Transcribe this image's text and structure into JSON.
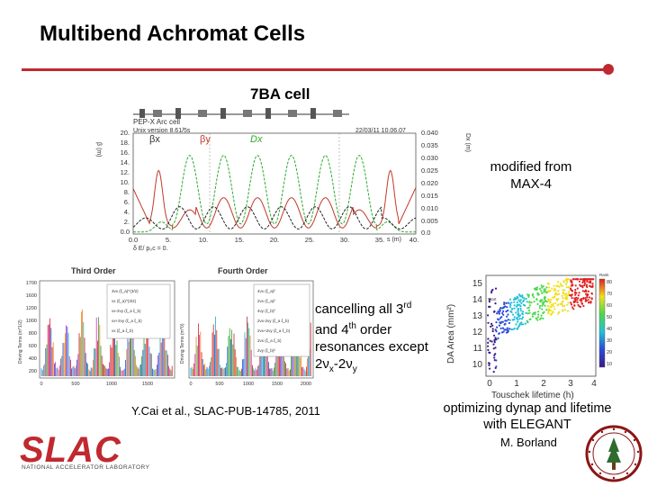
{
  "slide": {
    "title": "Multibend Achromat Cells",
    "cell_label": "7BA cell",
    "modified_line1": "modified from",
    "modified_line2": "MAX-4",
    "cancel_line1": "cancelling all 3",
    "cancel_sup1": "rd",
    "cancel_line2": "and 4",
    "cancel_sup2": "th",
    "cancel_line2_rest": " order",
    "cancel_line3": "resonances except",
    "cancel_line4_a": "2",
    "cancel_nu1": "ν",
    "cancel_sub1": "x",
    "cancel_line4_b": "-2",
    "cancel_nu2": "ν",
    "cancel_sub2": "y",
    "reference": "Y.Cai et al., SLAC-PUB-14785, 2011",
    "optim_line1": "optimizing dynap and lifetime",
    "optim_line2": "with ELEGANT",
    "author": "M. Borland",
    "logo_text": "SLAC",
    "logo_sub": "NATIONAL ACCELERATOR LABORATORY"
  },
  "lattice_plot": {
    "header_left": "PEP-X Arc cell",
    "header_version": "Unix version 8.61/5s",
    "header_date": "22/03/11  10.06.07",
    "label_betax": "βx",
    "label_betay": "βy",
    "label_dx": "Dx",
    "left_axis_unit": "β (m)",
    "right_axis_unit": "Dx (m)",
    "bottom_axis_unit": "s (m)",
    "bottom_note": "δ E/ p₀c = 0.",
    "left_ticks": [
      "20.",
      "18.",
      "16.",
      "14.",
      "12.",
      "10.",
      "8.",
      "6.",
      "4.",
      "2.",
      "0.0"
    ],
    "right_ticks": [
      "0.040",
      "0.035",
      "0.030",
      "0.025",
      "0.020",
      "0.015",
      "0.010",
      "0.005",
      "0.0"
    ],
    "bottom_ticks": [
      "0.0",
      "5.",
      "10.",
      "15.",
      "20.",
      "25.",
      "30.",
      "35.",
      "40."
    ],
    "colors": {
      "betax": "#c0392b",
      "betay": "#222222",
      "dx": "#2eaa2e"
    }
  },
  "resonance_plots": {
    "third_title": "Third Order",
    "fourth_title": "Fourth Order",
    "third_yticks": [
      "1700",
      "1600",
      "1200",
      "1000",
      "800",
      "600",
      "400",
      "200"
    ],
    "third_xticks": [
      "0",
      "500",
      "1000",
      "1500"
    ],
    "fourth_xticks": [
      "0",
      "500",
      "1000",
      "1500",
      "2000"
    ],
    "third_ylabel": "Driving Terms (m^1/2)",
    "fourth_ylabel": "Driving Terms (m^0)",
    "third_legend": [
      "3νx (ξ_a)^(3/2)",
      "νx (ξ_a)^(3/2)",
      "νx-2νy (ξ_a ξ_b)",
      "νx+2νy (ξ_a ξ_b)",
      "νx (ξ_a ξ_b)"
    ],
    "fourth_legend": [
      "4νx (ξ_a)²",
      "2νx (ξ_a)²",
      "4νy (ξ_b)²",
      "2νx-2νy (ξ_a ξ_b)",
      "2νx+2νy (ξ_a ξ_b)",
      "2νx (ξ_a ξ_b)",
      "2νy (ξ_b)²"
    ]
  },
  "da_plot": {
    "xlabel": "Touschek  lifetime  (h)",
    "ylabel": "DA  Area  (mm²)",
    "xticks": [
      "0",
      "1",
      "2",
      "3",
      "4"
    ],
    "yticks": [
      "15",
      "14",
      "13",
      "12",
      "11",
      "10"
    ],
    "colorbar_ticks": [
      "80",
      "70",
      "60",
      "50",
      "40",
      "30",
      "20",
      "10"
    ],
    "colorbar_top": "Rank",
    "start_label": "Start"
  }
}
